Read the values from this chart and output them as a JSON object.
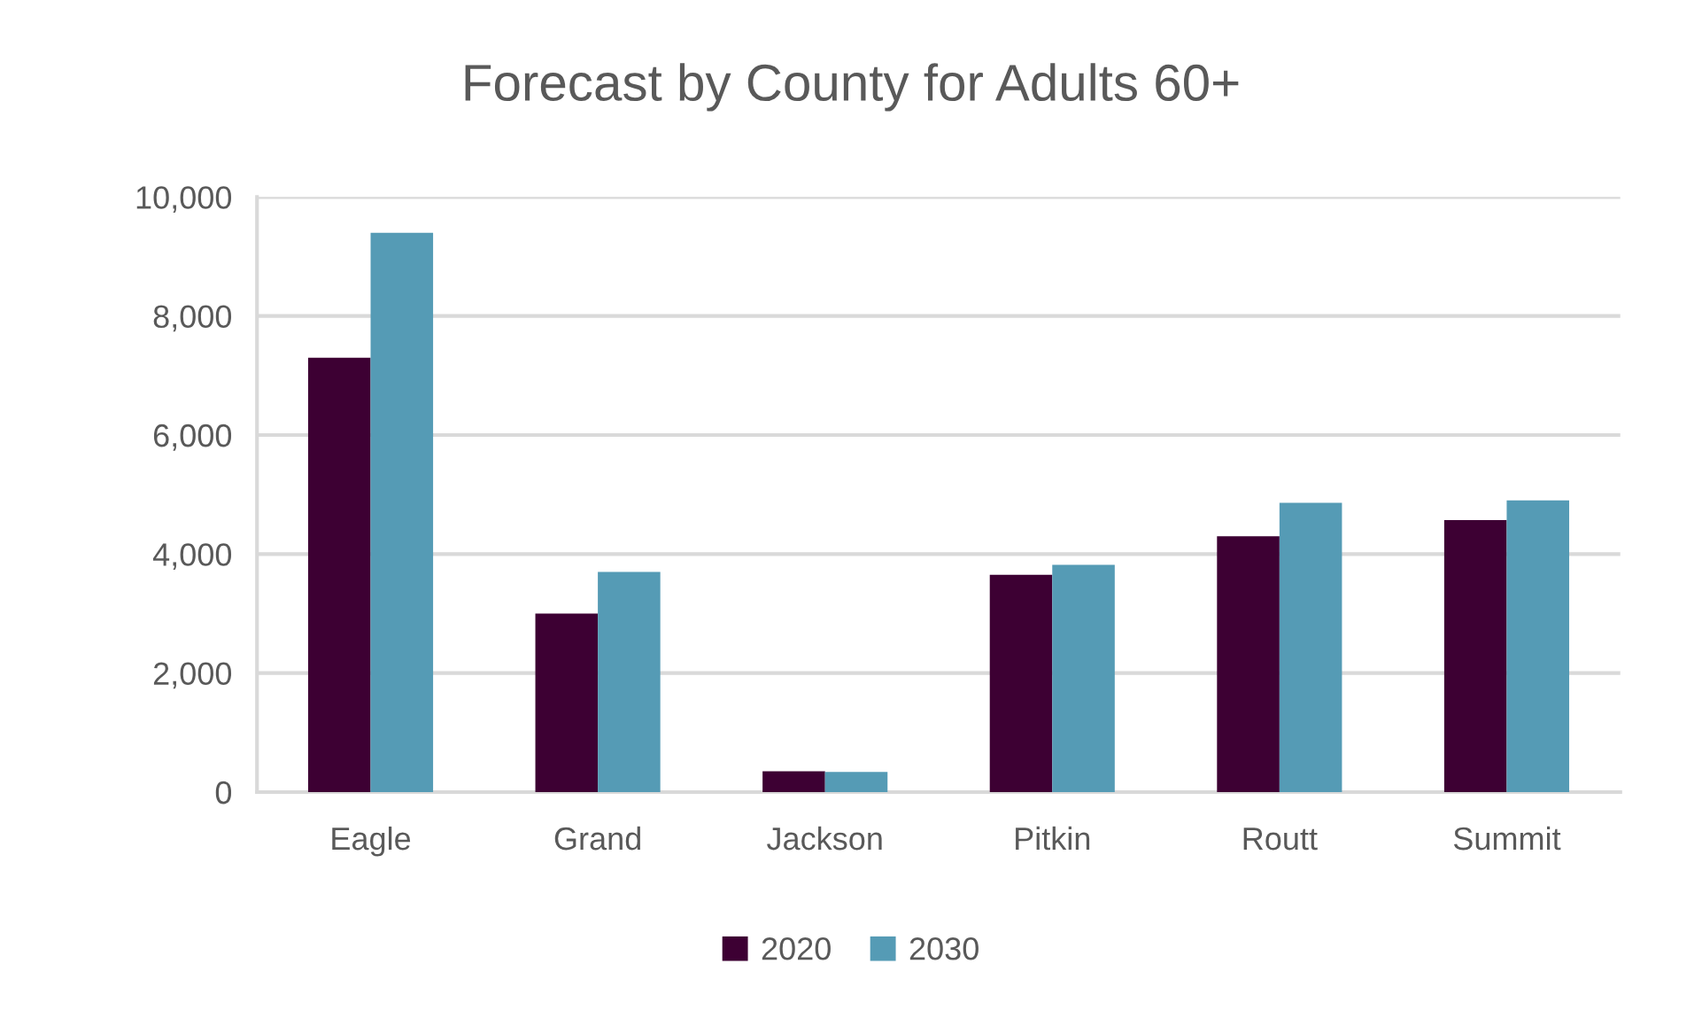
{
  "chart_data": {
    "type": "bar",
    "title": "Forecast by County for Adults 60+",
    "categories": [
      "Eagle",
      "Grand",
      "Jackson",
      "Pitkin",
      "Routt",
      "Summit"
    ],
    "series": [
      {
        "name": "2020",
        "color": "#3d0033",
        "values": [
          7300,
          3000,
          350,
          3650,
          4300,
          4570
        ]
      },
      {
        "name": "2030",
        "color": "#559bb5",
        "values": [
          9400,
          3700,
          340,
          3820,
          4860,
          4900
        ]
      }
    ],
    "ylim": [
      0,
      10000
    ],
    "yticks": [
      0,
      {
        "value": 2000,
        "label": "2,000"
      },
      {
        "value": 4000,
        "label": "4,000"
      },
      {
        "value": 6000,
        "label": "6,000"
      },
      {
        "value": 8000,
        "label": "8,000"
      },
      {
        "value": 10000,
        "label": "10,000"
      }
    ],
    "grid": "y",
    "legend": "bottom"
  }
}
